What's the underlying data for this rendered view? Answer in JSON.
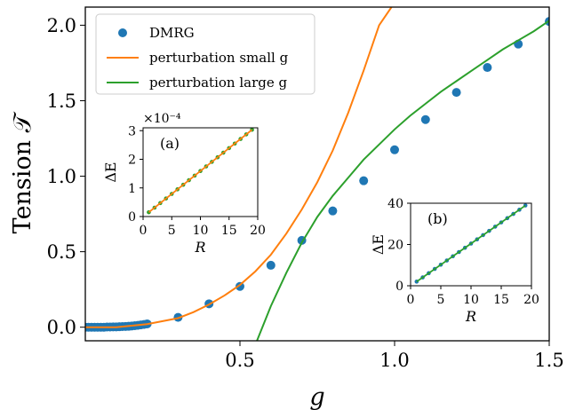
{
  "colors": {
    "dmrg": "#1f77b4",
    "small": "#ff7f0e",
    "large": "#2ca02c",
    "axes": "#000000"
  },
  "chart_data": [
    {
      "type": "line",
      "xlabel": "g",
      "ylabel": "Tension 𝒯",
      "xlim": [
        0.0,
        1.5
      ],
      "ylim": [
        -0.09,
        2.12
      ],
      "xticks": [
        0.5,
        1.0,
        1.5
      ],
      "xtick_labels": [
        "0.5",
        "1.0",
        "1.5"
      ],
      "yticks": [
        0.0,
        0.5,
        1.0,
        1.5,
        2.0
      ],
      "ytick_labels": [
        "0.0",
        "0.5",
        "1.0",
        "1.5",
        "2.0"
      ],
      "legend": {
        "position": "top-left",
        "entries": [
          {
            "key": "dmrg",
            "label": "DMRG",
            "marker": "circle"
          },
          {
            "key": "small",
            "label": "perturbation small g",
            "marker": "line"
          },
          {
            "key": "large",
            "label": "perturbation large g",
            "marker": "line"
          }
        ]
      },
      "series": [
        {
          "key": "dmrg",
          "name": "DMRG",
          "kind": "scatter",
          "x": [
            0.0,
            0.01,
            0.02,
            0.03,
            0.04,
            0.05,
            0.06,
            0.07,
            0.08,
            0.09,
            0.1,
            0.11,
            0.12,
            0.13,
            0.14,
            0.15,
            0.16,
            0.17,
            0.18,
            0.19,
            0.2,
            0.3,
            0.4,
            0.5,
            0.6,
            0.7,
            0.8,
            0.9,
            1.0,
            1.1,
            1.2,
            1.3,
            1.4,
            1.5
          ],
          "y": [
            0.0,
            0.0,
            0.0,
            0.0,
            0.0,
            0.0,
            0.0,
            0.001,
            0.001,
            0.002,
            0.002,
            0.003,
            0.004,
            0.005,
            0.006,
            0.008,
            0.01,
            0.012,
            0.015,
            0.018,
            0.022,
            0.065,
            0.155,
            0.27,
            0.41,
            0.575,
            0.77,
            0.97,
            1.175,
            1.375,
            1.555,
            1.72,
            1.875,
            2.025
          ]
        },
        {
          "key": "small",
          "name": "perturbation small g",
          "kind": "line",
          "x": [
            0.0,
            0.05,
            0.1,
            0.15,
            0.2,
            0.25,
            0.3,
            0.35,
            0.4,
            0.45,
            0.5,
            0.55,
            0.6,
            0.65,
            0.7,
            0.75,
            0.8,
            0.85,
            0.9,
            0.95,
            0.99
          ],
          "y": [
            0.0,
            0.0,
            0.0,
            0.01,
            0.02,
            0.04,
            0.06,
            0.1,
            0.15,
            0.21,
            0.28,
            0.37,
            0.48,
            0.62,
            0.78,
            0.96,
            1.17,
            1.42,
            1.7,
            2.0,
            2.12
          ]
        },
        {
          "key": "large",
          "name": "perturbation large g",
          "kind": "line",
          "x": [
            0.555,
            0.6,
            0.65,
            0.7,
            0.75,
            0.8,
            0.85,
            0.9,
            0.95,
            1.0,
            1.05,
            1.1,
            1.15,
            1.2,
            1.25,
            1.3,
            1.35,
            1.4,
            1.45,
            1.5
          ],
          "y": [
            -0.09,
            0.14,
            0.36,
            0.56,
            0.73,
            0.87,
            0.99,
            1.11,
            1.21,
            1.31,
            1.4,
            1.48,
            1.56,
            1.63,
            1.7,
            1.77,
            1.84,
            1.9,
            1.96,
            2.03
          ]
        }
      ]
    },
    {
      "type": "line",
      "annotation": "(a)",
      "xlabel": "R",
      "ylabel": "ΔE",
      "multiplier": "×10⁻⁴",
      "xlim": [
        0,
        20
      ],
      "ylim": [
        0,
        3.1
      ],
      "xticks": [
        0,
        5,
        10,
        15,
        20
      ],
      "xtick_labels": [
        "0",
        "5",
        "10",
        "15",
        "20"
      ],
      "yticks": [
        0,
        1,
        2,
        3
      ],
      "ytick_labels": [
        "0",
        "1",
        "2",
        "3"
      ],
      "series": [
        {
          "key": "large",
          "kind": "scatter",
          "x": [
            1,
            2,
            3,
            4,
            5,
            6,
            7,
            8,
            9,
            10,
            11,
            12,
            13,
            14,
            15,
            16,
            17,
            18,
            19
          ],
          "y": [
            0.15,
            0.31,
            0.47,
            0.63,
            0.79,
            0.95,
            1.11,
            1.27,
            1.43,
            1.59,
            1.75,
            1.91,
            2.07,
            2.23,
            2.39,
            2.55,
            2.71,
            2.87,
            3.03
          ]
        },
        {
          "key": "small",
          "kind": "line",
          "x": [
            1,
            19
          ],
          "y": [
            0.15,
            3.03
          ]
        }
      ]
    },
    {
      "type": "line",
      "annotation": "(b)",
      "xlabel": "R",
      "ylabel": "ΔE",
      "xlim": [
        0,
        20
      ],
      "ylim": [
        0,
        40
      ],
      "xticks": [
        0,
        5,
        10,
        15,
        20
      ],
      "xtick_labels": [
        "0",
        "5",
        "10",
        "15",
        "20"
      ],
      "yticks": [
        0,
        20,
        40
      ],
      "ytick_labels": [
        "0",
        "20",
        "40"
      ],
      "series": [
        {
          "key": "dmrg",
          "kind": "scatter",
          "x": [
            1,
            2,
            3,
            4,
            5,
            6,
            7,
            8,
            9,
            10,
            11,
            12,
            13,
            14,
            15,
            16,
            17,
            18,
            19
          ],
          "y": [
            2.0,
            4.05,
            6.1,
            8.15,
            10.2,
            12.25,
            14.3,
            16.35,
            18.4,
            20.45,
            22.5,
            24.55,
            26.6,
            28.65,
            30.7,
            32.75,
            34.8,
            36.85,
            38.9
          ]
        },
        {
          "key": "large",
          "kind": "line",
          "x": [
            1,
            19
          ],
          "y": [
            2.0,
            38.9
          ]
        }
      ]
    }
  ]
}
